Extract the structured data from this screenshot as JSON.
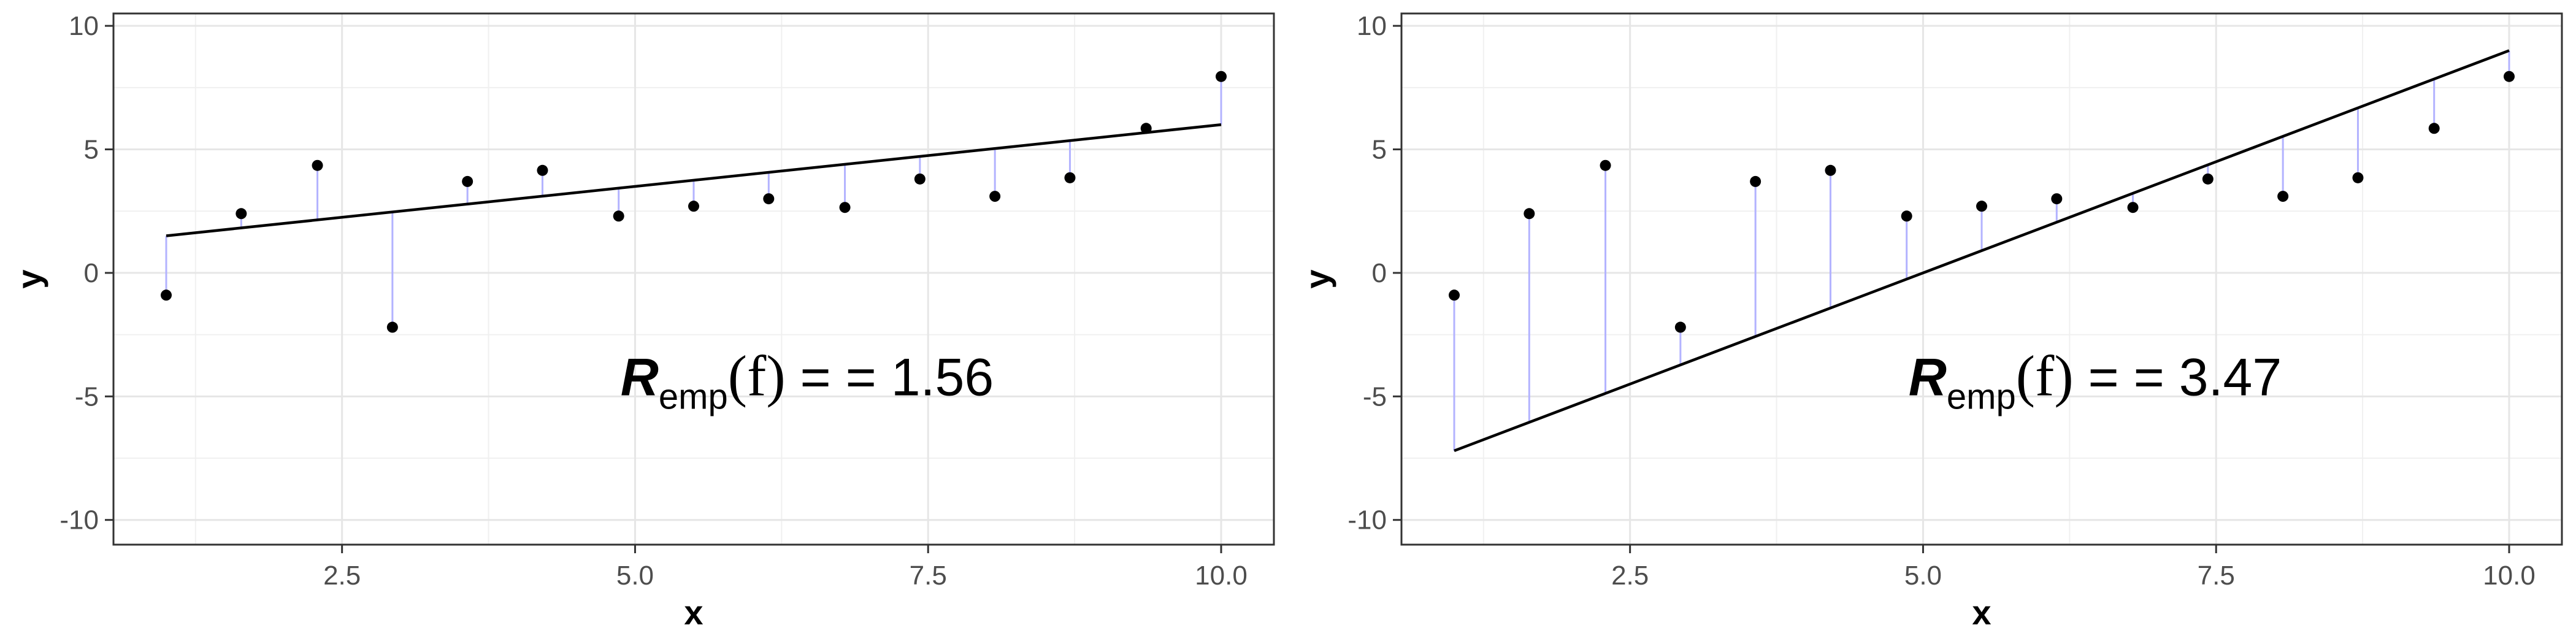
{
  "chart_data": [
    {
      "type": "scatter",
      "panel": "left",
      "xlabel": "x",
      "ylabel": "y",
      "xlim": [
        0.55,
        10.45
      ],
      "ylim": [
        -11,
        10.5
      ],
      "x_ticks": [
        2.5,
        5.0,
        7.5,
        10.0
      ],
      "x_tick_labels": [
        "2.5",
        "5.0",
        "7.5",
        "10.0"
      ],
      "y_ticks": [
        -10,
        -5,
        0,
        5,
        10
      ],
      "y_tick_labels": [
        "-10",
        "-5",
        "0",
        "5",
        "10"
      ],
      "grid": true,
      "points": {
        "x": [
          1.0,
          1.64,
          2.29,
          2.93,
          3.57,
          4.21,
          4.86,
          5.5,
          6.14,
          6.79,
          7.43,
          8.07,
          8.71,
          9.36,
          10.0
        ],
        "y": [
          -0.9,
          2.4,
          4.35,
          -2.2,
          3.7,
          4.15,
          2.3,
          2.7,
          3.0,
          2.65,
          3.8,
          3.1,
          3.85,
          5.85,
          7.95
        ]
      },
      "fit_line": {
        "x": [
          1.0,
          10.0
        ],
        "y": [
          1.5,
          6.0
        ]
      },
      "residual_color": "#b3b3ff",
      "annotation": {
        "label_main": "R",
        "label_sub": "emp",
        "label_arg": "(f)",
        "label_eq": " =  = ",
        "value": "1.56"
      }
    },
    {
      "type": "scatter",
      "panel": "right",
      "xlabel": "x",
      "ylabel": "y",
      "xlim": [
        0.55,
        10.45
      ],
      "ylim": [
        -11,
        10.5
      ],
      "x_ticks": [
        2.5,
        5.0,
        7.5,
        10.0
      ],
      "x_tick_labels": [
        "2.5",
        "5.0",
        "7.5",
        "10.0"
      ],
      "y_ticks": [
        -10,
        -5,
        0,
        5,
        10
      ],
      "y_tick_labels": [
        "-10",
        "-5",
        "0",
        "5",
        "10"
      ],
      "grid": true,
      "points": {
        "x": [
          1.0,
          1.64,
          2.29,
          2.93,
          3.57,
          4.21,
          4.86,
          5.5,
          6.14,
          6.79,
          7.43,
          8.07,
          8.71,
          9.36,
          10.0
        ],
        "y": [
          -0.9,
          2.4,
          4.35,
          -2.2,
          3.7,
          4.15,
          2.3,
          2.7,
          3.0,
          2.65,
          3.8,
          3.1,
          3.85,
          5.85,
          7.95
        ]
      },
      "fit_line": {
        "x": [
          1.0,
          10.0
        ],
        "y": [
          -7.2,
          9.0
        ]
      },
      "residual_color": "#b3b3ff",
      "annotation": {
        "label_main": "R",
        "label_sub": "emp",
        "label_arg": "(f)",
        "label_eq": " =  = ",
        "value": "3.47"
      }
    }
  ]
}
